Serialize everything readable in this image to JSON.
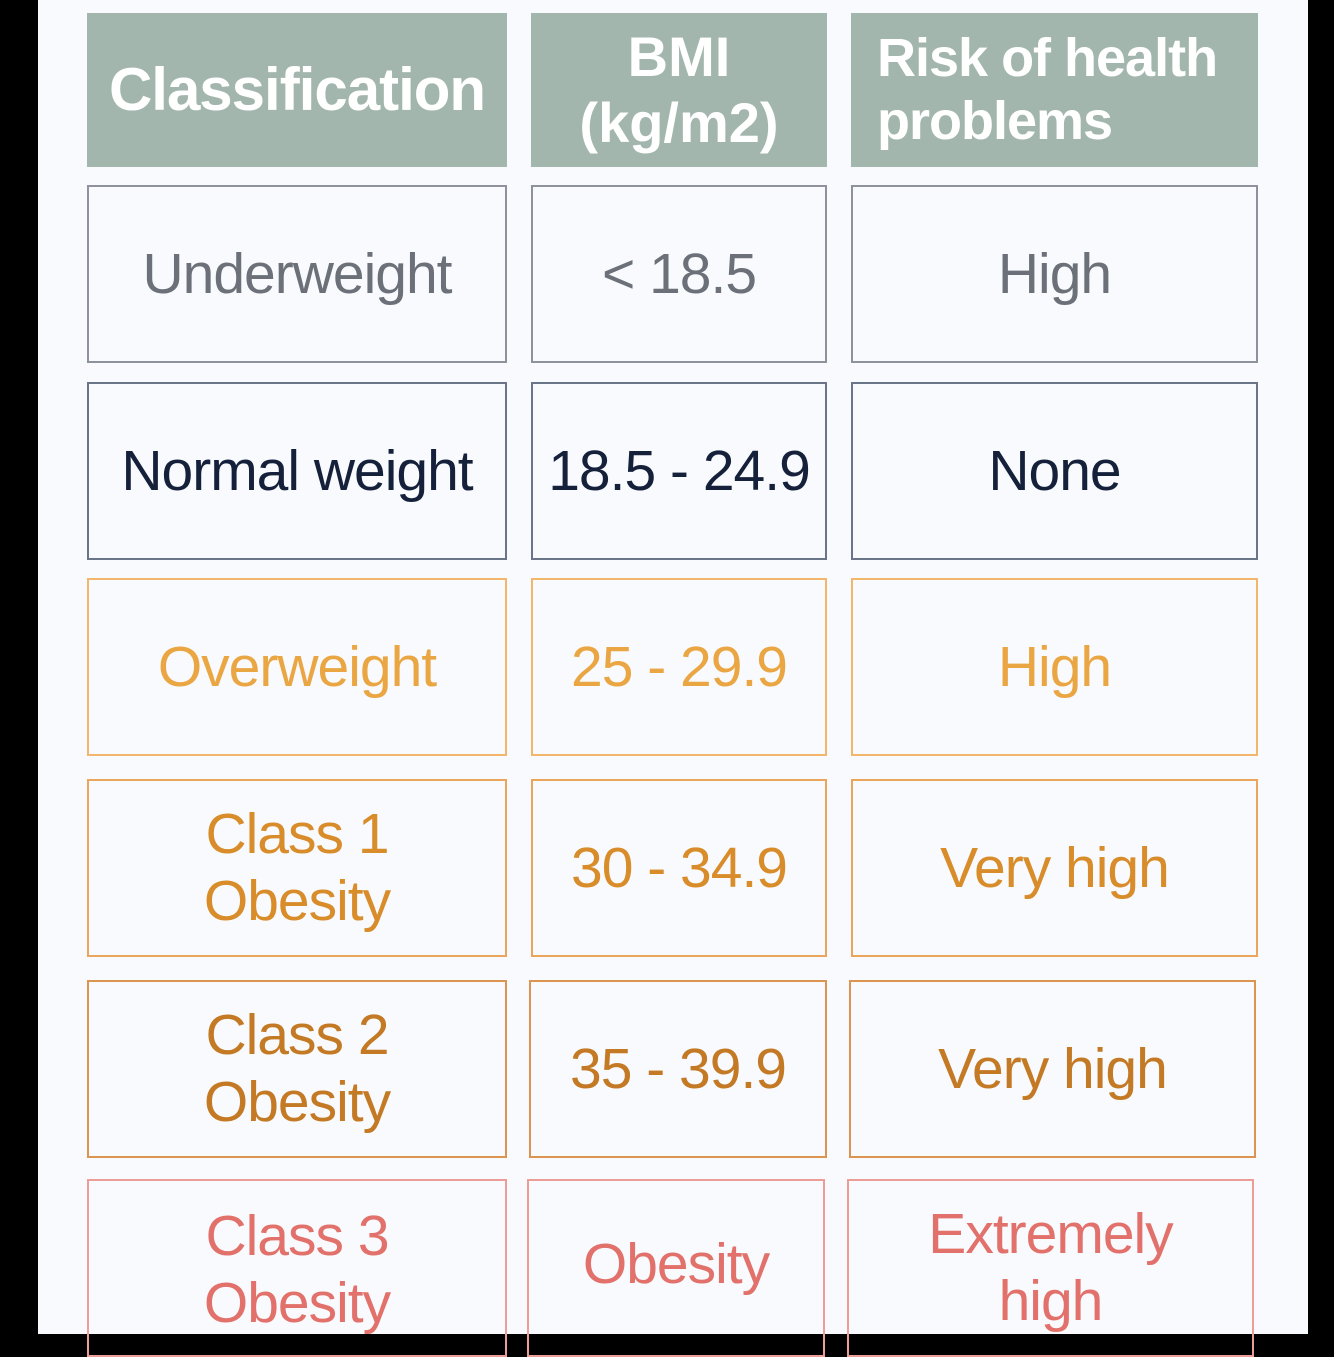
{
  "headers": {
    "classification": "Classification",
    "bmi_line1": "BMI",
    "bmi_line2": "(kg/m2)",
    "risk_line1": "Risk of health",
    "risk_line2": "problems"
  },
  "rows": [
    {
      "classification": "Underweight",
      "bmi": "< 18.5",
      "risk": "High"
    },
    {
      "classification": "Normal weight",
      "bmi": "18.5 - 24.9",
      "risk": "None"
    },
    {
      "classification": "Overweight",
      "bmi": "25 - 29.9",
      "risk": "High"
    },
    {
      "classification_line1": "Class 1",
      "classification_line2": "Obesity",
      "bmi": "30 - 34.9",
      "risk": "Very high"
    },
    {
      "classification_line1": "Class 2",
      "classification_line2": "Obesity",
      "bmi": "35 - 39.9",
      "risk": "Very high"
    },
    {
      "classification_line1": "Class 3",
      "classification_line2": "Obesity",
      "bmi": "Obesity",
      "risk_line1": "Extremely",
      "risk_line2": "high"
    }
  ],
  "colors": {
    "header_bg": "#a3b6ae",
    "underweight": "#6b7079",
    "normal": "#15203a",
    "overweight": "#eaa643",
    "obesity": "#d88c2a",
    "extreme": "#e2716b"
  }
}
